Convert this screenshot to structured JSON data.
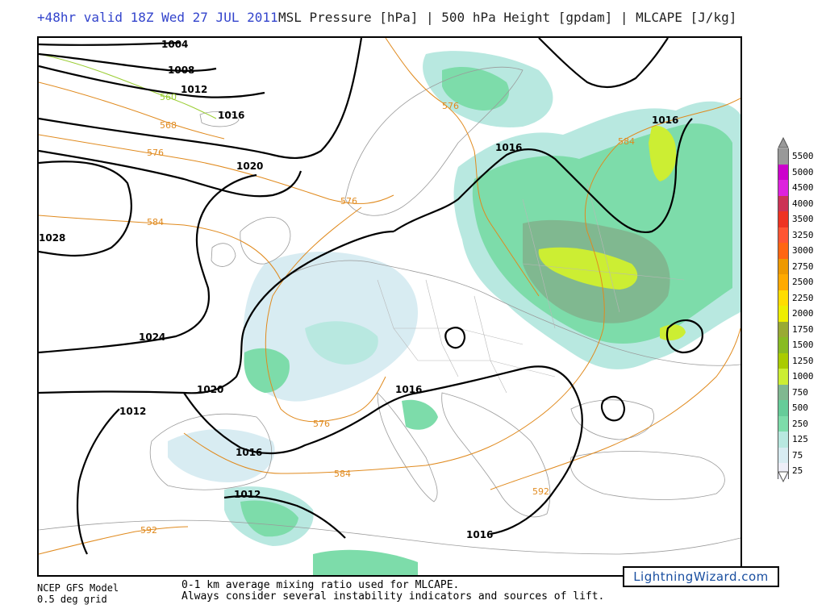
{
  "header": {
    "valid_time": "+48hr valid 18Z Wed 27 JUL 2011",
    "fields_title": "MSL Pressure [hPa] | 500 hPa Height [gpdam] | MLCAPE [J/kg]"
  },
  "map": {
    "isobar_labels": [
      "1004",
      "1008",
      "1012",
      "1016",
      "1020",
      "1028",
      "1024",
      "1020",
      "1012",
      "1016",
      "1012",
      "1016",
      "1016",
      "1016",
      "1016"
    ],
    "height_labels": [
      "560",
      "568",
      "576",
      "584",
      "576",
      "576",
      "576",
      "584",
      "584",
      "592",
      "592"
    ],
    "colors": {
      "isobar": "#000000",
      "height_contour": "#e08a1e",
      "height_contour_low": "#9acd32",
      "coastline": "#9a9a9a",
      "cape_25": "#eeeef8",
      "cape_75": "#d8ecf2",
      "cape_125": "#b8e8e0",
      "cape_250": "#7ddcaa",
      "cape_500": "#66cc99",
      "cape_750": "#80b890",
      "cape_1000": "#ccee33"
    }
  },
  "legend": {
    "title_unit": "J/kg",
    "levels": [
      {
        "label": "5500",
        "color": "#999999"
      },
      {
        "label": "5000",
        "color": "#cc00cc"
      },
      {
        "label": "4500",
        "color": "#dd22dd"
      },
      {
        "label": "4000",
        "color": "#cc3355"
      },
      {
        "label": "3500",
        "color": "#ee3322"
      },
      {
        "label": "3250",
        "color": "#ff5533"
      },
      {
        "label": "3000",
        "color": "#ff6611"
      },
      {
        "label": "2750",
        "color": "#ee9900"
      },
      {
        "label": "2500",
        "color": "#ffaa00"
      },
      {
        "label": "2250",
        "color": "#ffdd00"
      },
      {
        "label": "2000",
        "color": "#eeee00"
      },
      {
        "label": "1750",
        "color": "#99aa33"
      },
      {
        "label": "1500",
        "color": "#88bb22"
      },
      {
        "label": "1250",
        "color": "#aacc00"
      },
      {
        "label": "1000",
        "color": "#ccee33"
      },
      {
        "label": "750",
        "color": "#80b890"
      },
      {
        "label": "500",
        "color": "#66cc99"
      },
      {
        "label": "250",
        "color": "#7ddcaa"
      },
      {
        "label": "125",
        "color": "#b8e8e0"
      },
      {
        "label": "75",
        "color": "#d8ecf2"
      },
      {
        "label": "25",
        "color": "#eeeef8"
      }
    ]
  },
  "footer": {
    "model_name": "NCEP GFS Model",
    "grid_resolution": "0.5 deg grid",
    "note_line1": "0-1 km average mixing ratio used for MLCAPE.",
    "note_line2": "Always consider several instability indicators and sources of lift.",
    "brand": "LightningWizard.com"
  }
}
